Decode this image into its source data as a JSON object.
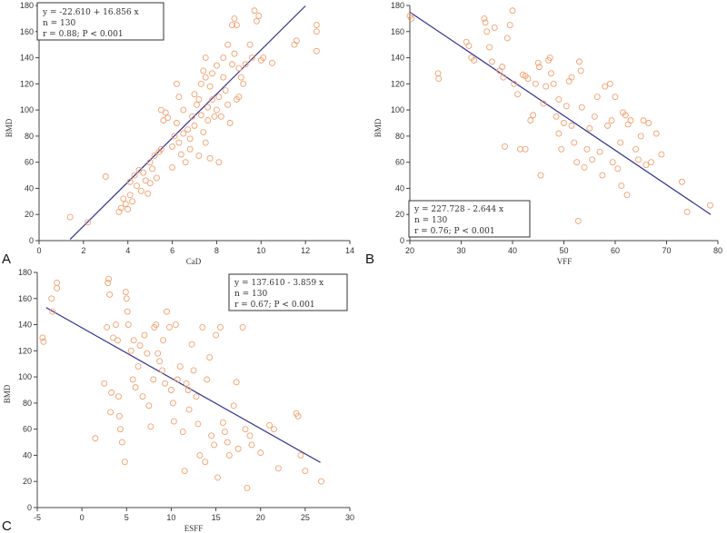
{
  "colors": {
    "point": "#f0a070",
    "line": "#2e3192",
    "axis": "#444444",
    "box": "#333333"
  },
  "chart_data": [
    {
      "type": "scatter",
      "panel_letter": "A",
      "xlabel": "CaD",
      "ylabel": "BMD",
      "xlim": [
        0,
        14
      ],
      "ylim": [
        0,
        180
      ],
      "xticks": [
        0,
        2,
        4,
        6,
        8,
        10,
        12,
        14
      ],
      "yticks": [
        0,
        20,
        40,
        60,
        80,
        100,
        120,
        140,
        160,
        180
      ],
      "regression": {
        "x": [
          1.4,
          12.0
        ],
        "y": [
          0.99,
          179.66
        ]
      },
      "stats": [
        "y = -22.610  +  16.856  x",
        "n = 130",
        "r = 0.88; P < 0.001"
      ],
      "points": [
        [
          1.4,
          18
        ],
        [
          2.2,
          14
        ],
        [
          3.0,
          49
        ],
        [
          3.6,
          22
        ],
        [
          3.7,
          25
        ],
        [
          3.8,
          32
        ],
        [
          3.9,
          28
        ],
        [
          4.0,
          24
        ],
        [
          4.1,
          45
        ],
        [
          4.1,
          35
        ],
        [
          4.2,
          30
        ],
        [
          4.3,
          50
        ],
        [
          4.4,
          42
        ],
        [
          4.5,
          54
        ],
        [
          4.6,
          38
        ],
        [
          4.7,
          52
        ],
        [
          4.8,
          46
        ],
        [
          4.9,
          36
        ],
        [
          5.0,
          44
        ],
        [
          5.0,
          60
        ],
        [
          5.1,
          55
        ],
        [
          5.2,
          65
        ],
        [
          5.3,
          48
        ],
        [
          5.4,
          68
        ],
        [
          5.5,
          70
        ],
        [
          5.5,
          100
        ],
        [
          5.6,
          92
        ],
        [
          5.7,
          98
        ],
        [
          5.8,
          94
        ],
        [
          6.0,
          72
        ],
        [
          6.0,
          56
        ],
        [
          6.1,
          80
        ],
        [
          6.2,
          120
        ],
        [
          6.2,
          90
        ],
        [
          6.3,
          75
        ],
        [
          6.3,
          110
        ],
        [
          6.4,
          66
        ],
        [
          6.5,
          82
        ],
        [
          6.5,
          100
        ],
        [
          6.6,
          60
        ],
        [
          6.7,
          85
        ],
        [
          6.8,
          78
        ],
        [
          6.8,
          70
        ],
        [
          6.9,
          95
        ],
        [
          7.0,
          112
        ],
        [
          7.0,
          88
        ],
        [
          7.1,
          104
        ],
        [
          7.2,
          108
        ],
        [
          7.2,
          65
        ],
        [
          7.3,
          120
        ],
        [
          7.3,
          96
        ],
        [
          7.4,
          130
        ],
        [
          7.4,
          83
        ],
        [
          7.5,
          125
        ],
        [
          7.5,
          140
        ],
        [
          7.6,
          102
        ],
        [
          7.6,
          92
        ],
        [
          7.7,
          118
        ],
        [
          7.7,
          63
        ],
        [
          7.8,
          128
        ],
        [
          7.8,
          108
        ],
        [
          7.9,
          95
        ],
        [
          8.0,
          134
        ],
        [
          8.0,
          100
        ],
        [
          8.1,
          110
        ],
        [
          8.1,
          60
        ],
        [
          8.2,
          95
        ],
        [
          8.3,
          125
        ],
        [
          8.3,
          140
        ],
        [
          8.4,
          115
        ],
        [
          8.5,
          150
        ],
        [
          8.5,
          104
        ],
        [
          8.6,
          90
        ],
        [
          8.7,
          165
        ],
        [
          8.7,
          135
        ],
        [
          8.8,
          170
        ],
        [
          8.8,
          143
        ],
        [
          8.9,
          165
        ],
        [
          9.0,
          132
        ],
        [
          9.0,
          110
        ],
        [
          9.1,
          125
        ],
        [
          9.2,
          120
        ],
        [
          9.3,
          135
        ],
        [
          9.5,
          150
        ],
        [
          9.6,
          140
        ],
        [
          9.7,
          176
        ],
        [
          9.8,
          168
        ],
        [
          9.9,
          172
        ],
        [
          10.0,
          138
        ],
        [
          10.1,
          140
        ],
        [
          10.5,
          136
        ],
        [
          11.5,
          150
        ],
        [
          11.6,
          153
        ],
        [
          12.5,
          160
        ],
        [
          12.5,
          145
        ],
        [
          12.5,
          165
        ],
        [
          8.9,
          108
        ],
        [
          7.5,
          75
        ]
      ]
    },
    {
      "type": "scatter",
      "panel_letter": "B",
      "xlabel": "VFF",
      "ylabel": "BMD",
      "xlim": [
        20,
        80
      ],
      "ylim": [
        0,
        180
      ],
      "xticks": [
        20,
        30,
        40,
        50,
        60,
        70,
        80
      ],
      "yticks": [
        0,
        20,
        40,
        60,
        80,
        100,
        120,
        140,
        160,
        180
      ],
      "regression": {
        "x": [
          20.0,
          78.6
        ],
        "y": [
          174.85,
          20.0
        ]
      },
      "stats": [
        "y = 227.728  -  2.644  x",
        "n = 130",
        "r = 0.76; P < 0.001"
      ],
      "points": [
        [
          20,
          172
        ],
        [
          20.3,
          170
        ],
        [
          25.5,
          128
        ],
        [
          25.6,
          124
        ],
        [
          31,
          152
        ],
        [
          31.5,
          149
        ],
        [
          32,
          140
        ],
        [
          32.5,
          138
        ],
        [
          34.5,
          170
        ],
        [
          34.7,
          167
        ],
        [
          35,
          160
        ],
        [
          35.5,
          148
        ],
        [
          36,
          137
        ],
        [
          36.5,
          163
        ],
        [
          37.5,
          130
        ],
        [
          38,
          133
        ],
        [
          38.2,
          125
        ],
        [
          38.5,
          72
        ],
        [
          39,
          155
        ],
        [
          39.5,
          165
        ],
        [
          40,
          176
        ],
        [
          40.3,
          120
        ],
        [
          41,
          112
        ],
        [
          41.5,
          70
        ],
        [
          42,
          127
        ],
        [
          42.5,
          126
        ],
        [
          42.5,
          70
        ],
        [
          43,
          124
        ],
        [
          43.5,
          92
        ],
        [
          44,
          96
        ],
        [
          44.5,
          120
        ],
        [
          45,
          136
        ],
        [
          45.2,
          133
        ],
        [
          45.5,
          50
        ],
        [
          46,
          105
        ],
        [
          46.5,
          118
        ],
        [
          47,
          138
        ],
        [
          47.3,
          140
        ],
        [
          47.5,
          128
        ],
        [
          48,
          120
        ],
        [
          48.5,
          95
        ],
        [
          49,
          108
        ],
        [
          49,
          82
        ],
        [
          49.5,
          70
        ],
        [
          50,
          90
        ],
        [
          50.5,
          103
        ],
        [
          51,
          122
        ],
        [
          51.5,
          125
        ],
        [
          51.5,
          88
        ],
        [
          52,
          75
        ],
        [
          52.5,
          60
        ],
        [
          52.8,
          15
        ],
        [
          53,
          137
        ],
        [
          53.3,
          130
        ],
        [
          53.5,
          102
        ],
        [
          54,
          56
        ],
        [
          54.5,
          70
        ],
        [
          55,
          86
        ],
        [
          55.5,
          62
        ],
        [
          56,
          95
        ],
        [
          56.5,
          110
        ],
        [
          57,
          68
        ],
        [
          57.5,
          50
        ],
        [
          58,
          118
        ],
        [
          58.5,
          88
        ],
        [
          59,
          120
        ],
        [
          59.3,
          92
        ],
        [
          59.5,
          60
        ],
        [
          60,
          110
        ],
        [
          60.5,
          55
        ],
        [
          61,
          75
        ],
        [
          61.2,
          42
        ],
        [
          61.5,
          98
        ],
        [
          62,
          96
        ],
        [
          62.3,
          35
        ],
        [
          62.5,
          89
        ],
        [
          63,
          92
        ],
        [
          64,
          70
        ],
        [
          64.5,
          62
        ],
        [
          65,
          80
        ],
        [
          65.5,
          92
        ],
        [
          66,
          58
        ],
        [
          66.5,
          90
        ],
        [
          67,
          60
        ],
        [
          68,
          82
        ],
        [
          69,
          66
        ],
        [
          73,
          45
        ],
        [
          74,
          22
        ],
        [
          78.5,
          27
        ]
      ]
    },
    {
      "type": "scatter",
      "panel_letter": "C",
      "xlabel": "ESFF",
      "ylabel": "BMD",
      "xlim": [
        -5,
        30
      ],
      "ylim": [
        0,
        180
      ],
      "xticks": [
        -5,
        0,
        5,
        10,
        15,
        20,
        25,
        30
      ],
      "yticks": [
        0,
        20,
        40,
        60,
        80,
        100,
        120,
        140,
        160,
        180
      ],
      "regression": {
        "x": [
          -4.0,
          26.7
        ],
        "y": [
          153.05,
          34.57
        ]
      },
      "stats": [
        "y = 137.610  -  3.859  x",
        "n = 130",
        "r = 0.67; P < 0.001"
      ],
      "points": [
        [
          -4.4,
          130
        ],
        [
          -4.3,
          127
        ],
        [
          -3.4,
          160
        ],
        [
          -3.3,
          150
        ],
        [
          -2.8,
          172
        ],
        [
          -2.8,
          168
        ],
        [
          1.5,
          53
        ],
        [
          2.5,
          95
        ],
        [
          2.8,
          138
        ],
        [
          2.9,
          172
        ],
        [
          3,
          175
        ],
        [
          3.1,
          163
        ],
        [
          3.2,
          73
        ],
        [
          3.3,
          88
        ],
        [
          3.5,
          130
        ],
        [
          3.8,
          140
        ],
        [
          4,
          128
        ],
        [
          4.1,
          85
        ],
        [
          4.2,
          70
        ],
        [
          4.3,
          60
        ],
        [
          4.5,
          50
        ],
        [
          4.8,
          35
        ],
        [
          4.9,
          165
        ],
        [
          5,
          160
        ],
        [
          5.1,
          150
        ],
        [
          5.2,
          140
        ],
        [
          5.5,
          120
        ],
        [
          5.7,
          98
        ],
        [
          5.8,
          128
        ],
        [
          6,
          92
        ],
        [
          6.3,
          108
        ],
        [
          6.5,
          124
        ],
        [
          6.8,
          85
        ],
        [
          7,
          132
        ],
        [
          7.3,
          118
        ],
        [
          7.5,
          78
        ],
        [
          7.7,
          62
        ],
        [
          8,
          98
        ],
        [
          8.1,
          138
        ],
        [
          8.3,
          140
        ],
        [
          8.5,
          118
        ],
        [
          8.7,
          112
        ],
        [
          9,
          105
        ],
        [
          9.1,
          128
        ],
        [
          9.3,
          95
        ],
        [
          9.5,
          150
        ],
        [
          9.8,
          138
        ],
        [
          10,
          90
        ],
        [
          10.2,
          80
        ],
        [
          10.3,
          66
        ],
        [
          10.5,
          140
        ],
        [
          10.7,
          98
        ],
        [
          11,
          108
        ],
        [
          11.3,
          58
        ],
        [
          11.5,
          28
        ],
        [
          11.7,
          95
        ],
        [
          11.9,
          90
        ],
        [
          12,
          75
        ],
        [
          12.3,
          125
        ],
        [
          12.5,
          105
        ],
        [
          12.8,
          85
        ],
        [
          13,
          64
        ],
        [
          13.2,
          40
        ],
        [
          13.5,
          138
        ],
        [
          13.8,
          35
        ],
        [
          14,
          98
        ],
        [
          14.3,
          115
        ],
        [
          14.5,
          55
        ],
        [
          14.8,
          48
        ],
        [
          15,
          132
        ],
        [
          15.2,
          23
        ],
        [
          15.5,
          138
        ],
        [
          15.8,
          65
        ],
        [
          16,
          58
        ],
        [
          16.3,
          50
        ],
        [
          16.5,
          40
        ],
        [
          17,
          78
        ],
        [
          17.3,
          96
        ],
        [
          17.5,
          45
        ],
        [
          18,
          138
        ],
        [
          18.3,
          60
        ],
        [
          18.5,
          15
        ],
        [
          18.8,
          55
        ],
        [
          19,
          48
        ],
        [
          20,
          42
        ],
        [
          21,
          63
        ],
        [
          21.5,
          60
        ],
        [
          22,
          30
        ],
        [
          24,
          72
        ],
        [
          24.2,
          70
        ],
        [
          24.5,
          40
        ],
        [
          25,
          28
        ],
        [
          26.8,
          20
        ]
      ]
    }
  ]
}
